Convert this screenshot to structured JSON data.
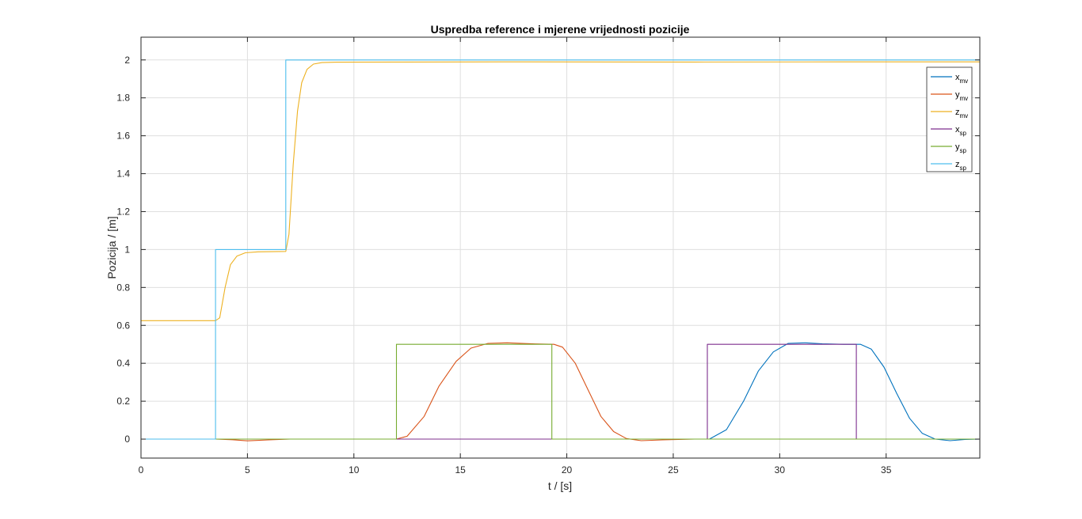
{
  "chart_data": {
    "type": "line",
    "title": "Uspredba reference i mjerene vrijednosti pozicije",
    "xlabel": "t / [s]",
    "ylabel": "Pozicija / [m]",
    "xlim": [
      0,
      39.4
    ],
    "ylim": [
      -0.1,
      2.12
    ],
    "xticks": [
      0,
      5,
      10,
      15,
      20,
      25,
      30,
      35
    ],
    "yticks": [
      0,
      0.2,
      0.4,
      0.6,
      0.8,
      1,
      1.2,
      1.4,
      1.6,
      1.8,
      2
    ],
    "ytick_labels": [
      "0",
      "0.2",
      "0.4",
      "0.6",
      "0.8",
      "1",
      "1.2",
      "1.4",
      "1.6",
      "1.8",
      "2"
    ],
    "grid": true,
    "legend_position": "top-right",
    "series": [
      {
        "name": "x",
        "sub": "mv",
        "color": "#0072BD",
        "x": [
          0,
          26.7,
          27.5,
          28.3,
          29.0,
          29.7,
          30.4,
          31.2,
          32.0,
          33.0,
          33.8,
          34.3,
          34.9,
          35.5,
          36.1,
          36.7,
          37.3,
          38.0,
          38.7,
          39.4
        ],
        "y": [
          0,
          0,
          0.05,
          0.2,
          0.36,
          0.46,
          0.505,
          0.508,
          0.503,
          0.5,
          0.5,
          0.475,
          0.38,
          0.24,
          0.11,
          0.03,
          0.0,
          -0.008,
          -0.002,
          0
        ]
      },
      {
        "name": "y",
        "sub": "mv",
        "color": "#D95319",
        "x": [
          0,
          3.5,
          4.3,
          5.0,
          6.0,
          7.0,
          12.0,
          12.5,
          13.3,
          14.0,
          14.8,
          15.5,
          16.3,
          17.2,
          18.5,
          19.4,
          19.8,
          20.4,
          21.0,
          21.6,
          22.2,
          22.8,
          23.5,
          24.5,
          26.0,
          39.4
        ],
        "y": [
          0,
          0,
          -0.003,
          -0.009,
          -0.004,
          0,
          0,
          0.015,
          0.12,
          0.28,
          0.41,
          0.48,
          0.505,
          0.508,
          0.502,
          0.5,
          0.485,
          0.4,
          0.26,
          0.12,
          0.04,
          0.003,
          -0.008,
          -0.004,
          0,
          0
        ]
      },
      {
        "name": "z",
        "sub": "mv",
        "color": "#EDB120",
        "x": [
          0,
          3.5,
          3.7,
          3.95,
          4.2,
          4.5,
          4.9,
          5.5,
          6.8,
          6.95,
          7.15,
          7.35,
          7.55,
          7.8,
          8.1,
          8.5,
          9.2,
          12.0,
          18.0,
          26.0,
          33.0,
          39.4
        ],
        "y": [
          0.625,
          0.625,
          0.64,
          0.8,
          0.92,
          0.965,
          0.983,
          0.988,
          0.99,
          1.08,
          1.45,
          1.73,
          1.88,
          1.95,
          1.978,
          1.986,
          1.988,
          1.989,
          1.99,
          1.989,
          1.99,
          1.99
        ]
      },
      {
        "name": "x",
        "sub": "sp",
        "color": "#7E2F8E",
        "x": [
          0,
          26.6,
          26.6,
          33.6,
          33.6,
          39.4
        ],
        "y": [
          0,
          0,
          0.5,
          0.5,
          0,
          0
        ]
      },
      {
        "name": "y",
        "sub": "sp",
        "color": "#77AC30",
        "x": [
          0,
          12.0,
          12.0,
          19.3,
          19.3,
          39.4
        ],
        "y": [
          0,
          0,
          0.5,
          0.5,
          0,
          0
        ]
      },
      {
        "name": "z",
        "sub": "sp",
        "color": "#4DBEEE",
        "x": [
          0,
          3.5,
          3.5,
          6.8,
          6.8,
          39.4
        ],
        "y": [
          0,
          0,
          1,
          1,
          2,
          2
        ]
      }
    ]
  }
}
